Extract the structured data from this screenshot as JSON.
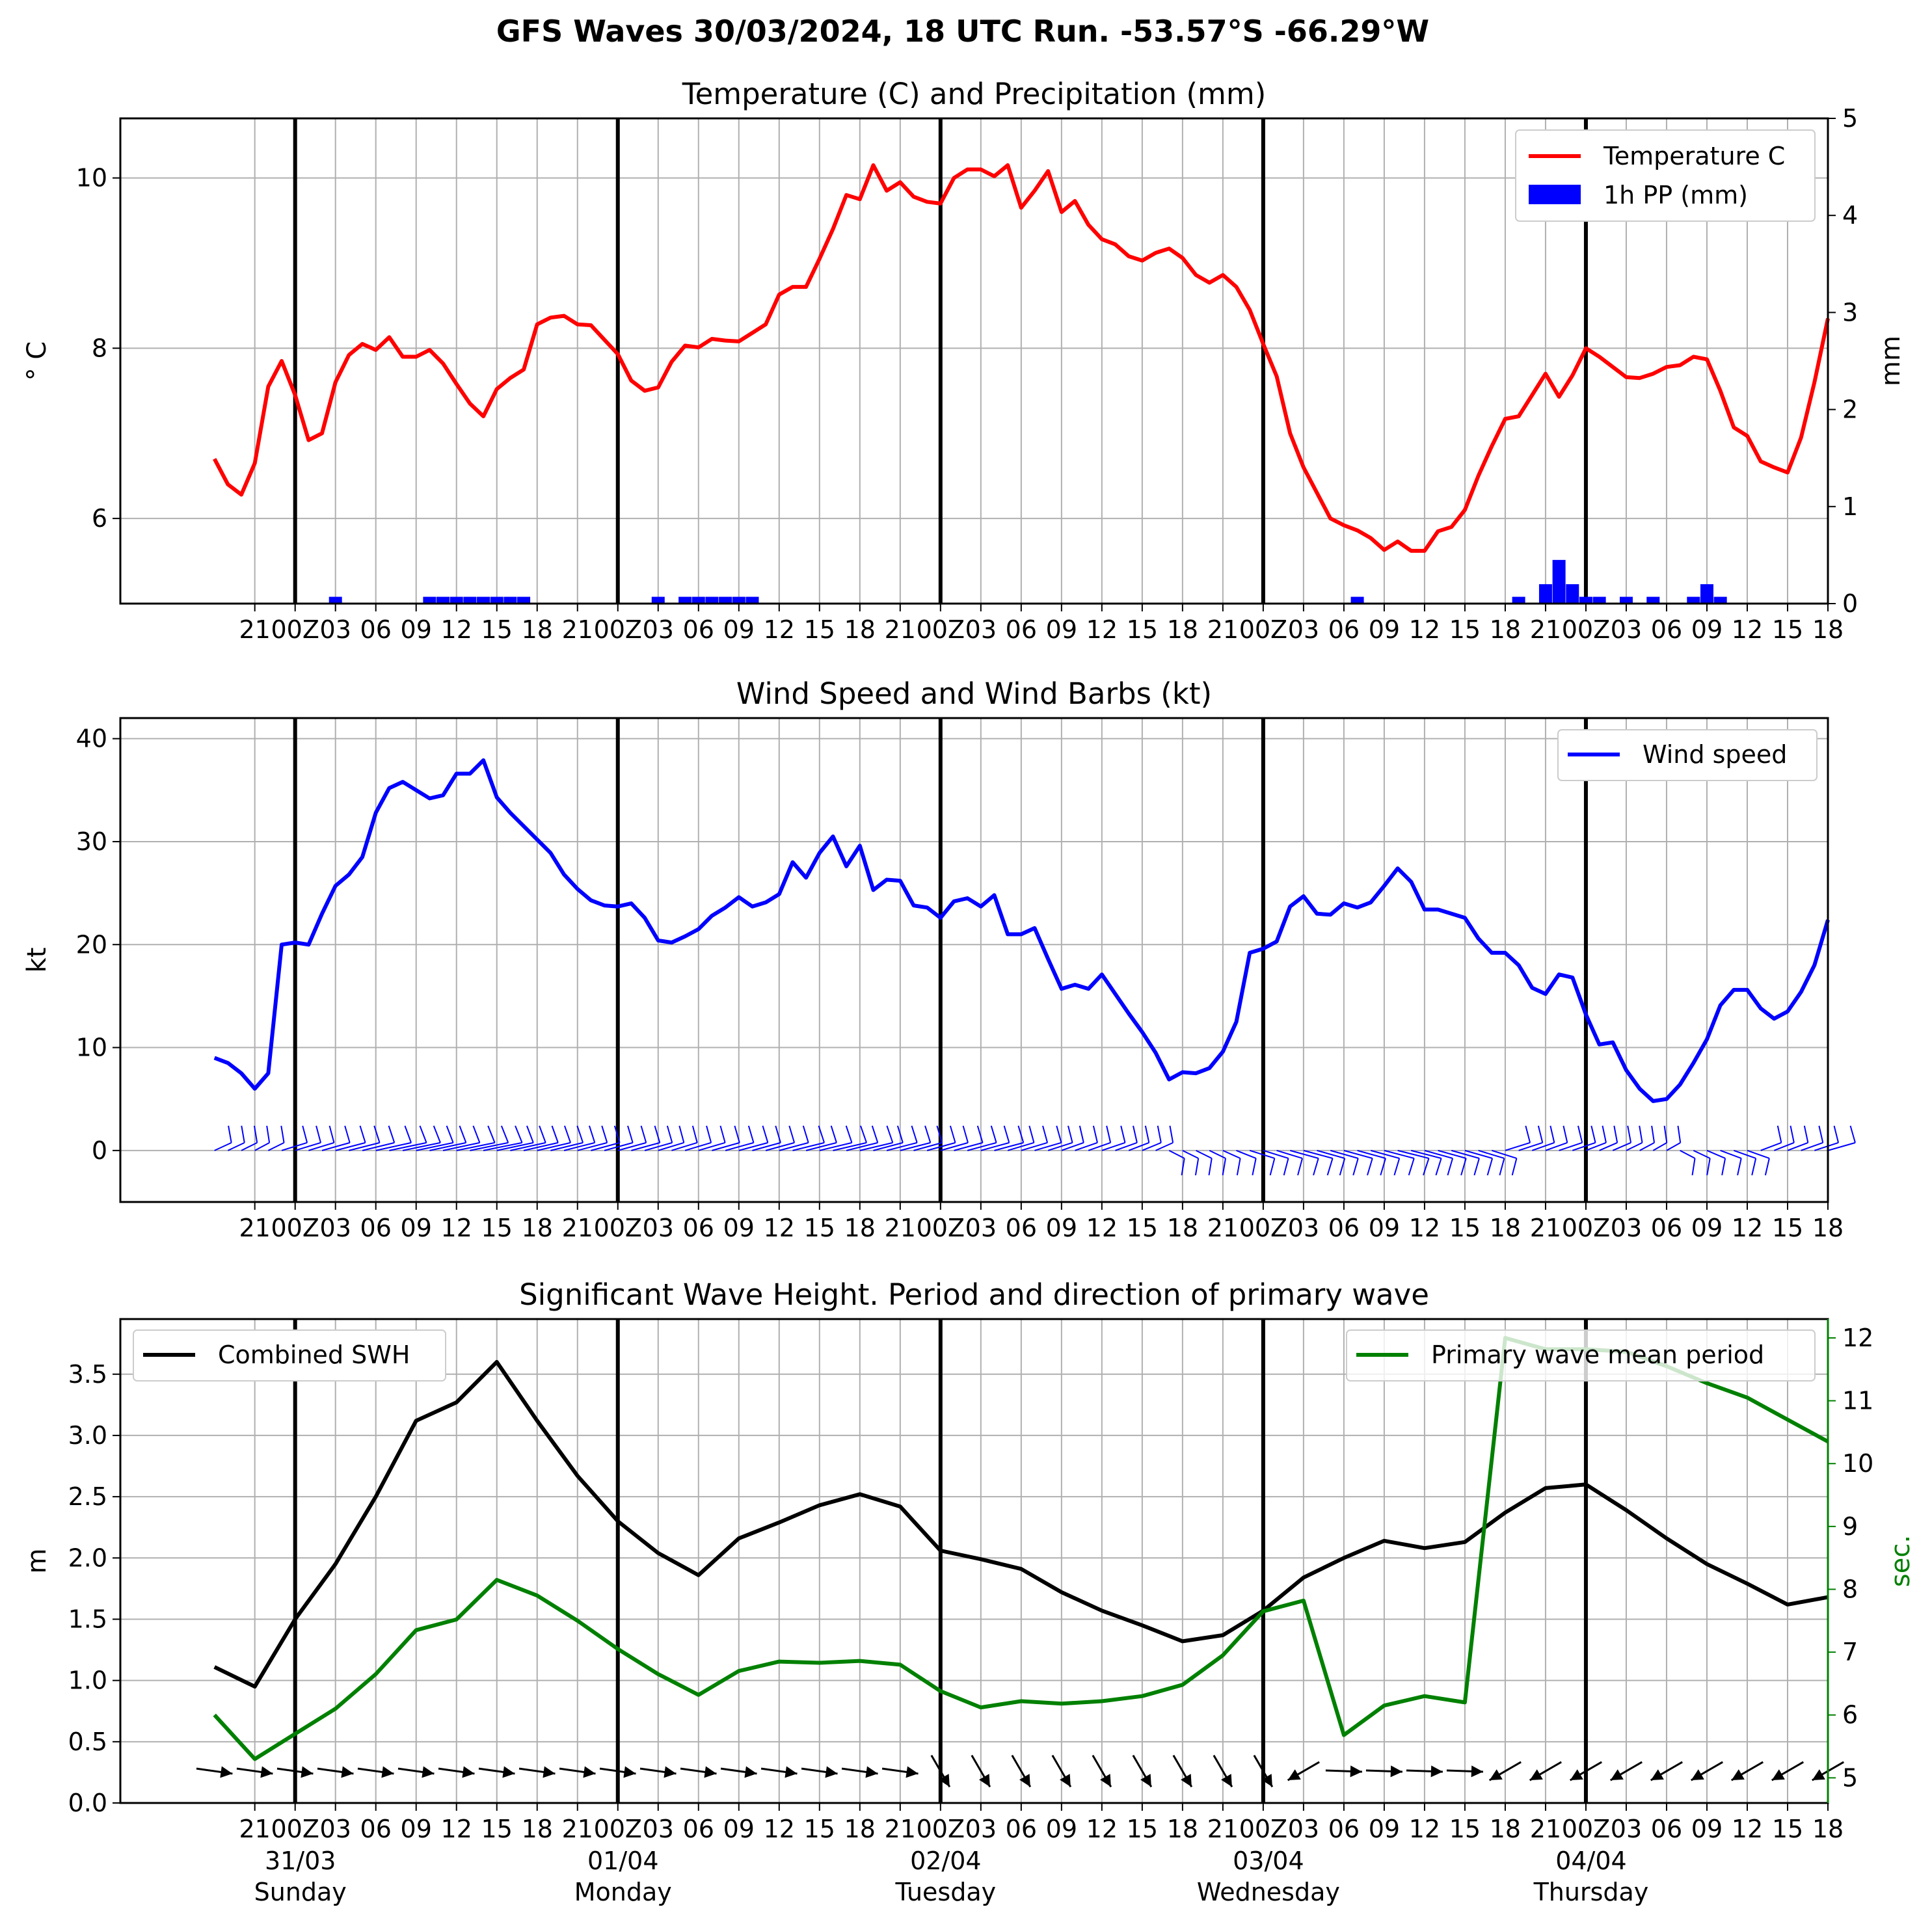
{
  "suptitle": "GFS Waves 30/03/2024, 18 UTC Run. -53.57°S -66.29°W",
  "colors": {
    "temperature": "#ff0000",
    "precip": "#0000ff",
    "wind": "#0000ff",
    "swh": "#000000",
    "period": "#008000",
    "grid": "#b0b0b0",
    "day_lines": "#000000"
  },
  "x_ticks_top": [
    "21",
    "00Z",
    "03",
    "06",
    "09",
    "12",
    "15",
    "18",
    "21",
    "00Z",
    "03",
    "06",
    "09",
    "12",
    "15",
    "18",
    "21",
    "00Z",
    "03",
    "06",
    "09",
    "12",
    "15",
    "18",
    "21",
    "00Z",
    "03",
    "06",
    "09",
    "12",
    "15",
    "18",
    "21",
    "00Z",
    "03",
    "06",
    "09",
    "12",
    "15",
    "18"
  ],
  "day_labels": [
    {
      "date": "31/03",
      "day": "Sunday"
    },
    {
      "date": "01/04",
      "day": "Monday"
    },
    {
      "date": "02/04",
      "day": "Tuesday"
    },
    {
      "date": "03/04",
      "day": "Wednesday"
    },
    {
      "date": "04/04",
      "day": "Thursday"
    }
  ],
  "chart_data": [
    {
      "type": "line",
      "title": "Temperature (C) and Precipitation (mm)",
      "x_unit": "hours since 30/03/2024 18 UTC",
      "ylabel": "° C",
      "ylabel_right": "mm",
      "ylim": [
        5.0,
        10.7
      ],
      "yticks": [
        6,
        8,
        10
      ],
      "ylim_right": [
        0,
        5
      ],
      "yticks_right": [
        0,
        1,
        2,
        3,
        4,
        5
      ],
      "grid": true,
      "legend": "top-right",
      "series": [
        {
          "name": "Temperature C",
          "color": "#ff0000",
          "x": [
            0,
            1,
            2,
            3,
            4,
            5,
            6,
            7,
            8,
            9,
            10,
            11,
            12,
            13,
            14,
            15,
            16,
            17,
            18,
            19,
            20,
            21,
            22,
            23,
            24,
            25,
            26,
            27,
            28,
            29,
            30,
            31,
            32,
            33,
            34,
            35,
            36,
            37,
            38,
            39,
            40,
            41,
            42,
            43,
            44,
            45,
            46,
            47,
            48,
            49,
            50,
            51,
            52,
            53,
            54,
            55,
            56,
            57,
            58,
            59,
            60,
            61,
            62,
            63,
            64,
            65,
            66,
            67,
            68,
            69,
            70,
            71,
            72,
            73,
            74,
            75,
            76,
            77,
            78,
            79,
            80,
            81,
            82,
            83,
            84,
            85,
            86,
            87,
            88,
            89,
            90,
            91,
            92,
            93,
            94,
            95,
            96,
            97,
            98,
            99,
            100,
            101,
            102,
            103,
            104,
            105,
            106,
            107,
            108,
            109,
            110,
            111,
            112,
            113,
            114,
            115,
            116,
            117,
            118,
            119,
            120
          ],
          "values": [
            6.7,
            6.4,
            6.28,
            6.65,
            7.55,
            7.85,
            7.45,
            6.92,
            7.0,
            7.6,
            7.92,
            8.05,
            7.98,
            8.13,
            7.9,
            7.9,
            7.98,
            7.82,
            7.58,
            7.35,
            7.2,
            7.52,
            7.65,
            7.75,
            8.28,
            8.36,
            8.38,
            8.28,
            8.27,
            8.1,
            7.93,
            7.62,
            7.5,
            7.54,
            7.84,
            8.03,
            8.01,
            8.11,
            8.09,
            8.08,
            8.18,
            8.28,
            8.63,
            8.72,
            8.72,
            9.05,
            9.4,
            9.8,
            9.75,
            10.15,
            9.85,
            9.95,
            9.78,
            9.72,
            9.7,
            10.0,
            10.1,
            10.1,
            10.02,
            10.15,
            9.65,
            9.85,
            10.08,
            9.6,
            9.73,
            9.45,
            9.28,
            9.22,
            9.08,
            9.03,
            9.12,
            9.17,
            9.06,
            8.86,
            8.77,
            8.86,
            8.72,
            8.45,
            8.05,
            7.67,
            7.0,
            6.6,
            6.3,
            6.0,
            5.92,
            5.86,
            5.77,
            5.63,
            5.73,
            5.62,
            5.62,
            5.85,
            5.9,
            6.1,
            6.5,
            6.85,
            7.17,
            7.2,
            7.45,
            7.7,
            7.43,
            7.68,
            8.0,
            7.9,
            7.78,
            7.66,
            7.65,
            7.7,
            7.78,
            7.8,
            7.9,
            7.87,
            7.5,
            7.07,
            6.97,
            6.67,
            6.6,
            6.54,
            6.95,
            7.6,
            8.35
          ]
        },
        {
          "name": "1h PP (mm)",
          "type": "bar",
          "color": "#0000ff",
          "axis": "right",
          "x": [
            9,
            16,
            17,
            18,
            19,
            20,
            21,
            22,
            23,
            33,
            35,
            36,
            37,
            38,
            39,
            40,
            85,
            97,
            99,
            100,
            101,
            102,
            103,
            105,
            107,
            110,
            111,
            112
          ],
          "values": [
            0.07,
            0.07,
            0.07,
            0.07,
            0.07,
            0.07,
            0.07,
            0.07,
            0.07,
            0.07,
            0.07,
            0.07,
            0.07,
            0.07,
            0.07,
            0.07,
            0.07,
            0.07,
            0.2,
            0.45,
            0.2,
            0.07,
            0.07,
            0.07,
            0.07,
            0.07,
            0.2,
            0.07
          ]
        }
      ]
    },
    {
      "type": "line",
      "title": "Wind Speed and Wind Barbs (kt)",
      "x_unit": "hours since 30/03/2024 18 UTC",
      "ylabel": "kt",
      "ylim": [
        -5,
        42
      ],
      "yticks": [
        0,
        10,
        20,
        30,
        40
      ],
      "grid": true,
      "legend": "top-right",
      "series": [
        {
          "name": "Wind speed",
          "color": "#0000ff",
          "x": [
            0,
            1,
            2,
            3,
            4,
            5,
            6,
            7,
            8,
            9,
            10,
            11,
            12,
            13,
            14,
            15,
            16,
            17,
            18,
            19,
            20,
            21,
            22,
            23,
            24,
            25,
            26,
            27,
            28,
            29,
            30,
            31,
            32,
            33,
            34,
            35,
            36,
            37,
            38,
            39,
            40,
            41,
            42,
            43,
            44,
            45,
            46,
            47,
            48,
            49,
            50,
            51,
            52,
            53,
            54,
            55,
            56,
            57,
            58,
            59,
            60,
            61,
            62,
            63,
            64,
            65,
            66,
            67,
            68,
            69,
            70,
            71,
            72,
            73,
            74,
            75,
            76,
            77,
            78,
            79,
            80,
            81,
            82,
            83,
            84,
            85,
            86,
            87,
            88,
            89,
            90,
            91,
            92,
            93,
            94,
            95,
            96,
            97,
            98,
            99,
            100,
            101,
            102,
            103,
            104,
            105,
            106,
            107,
            108,
            109,
            110,
            111,
            112,
            113,
            114,
            115,
            116,
            117,
            118,
            119,
            120
          ],
          "values": [
            9.0,
            8.5,
            7.5,
            6.0,
            7.5,
            20.0,
            20.2,
            20.0,
            23.0,
            25.7,
            26.8,
            28.5,
            32.8,
            35.2,
            35.8,
            35.0,
            34.2,
            34.5,
            36.6,
            36.6,
            37.9,
            34.3,
            32.8,
            31.5,
            30.2,
            28.9,
            26.8,
            25.4,
            24.3,
            23.8,
            23.7,
            24.0,
            22.6,
            20.4,
            20.2,
            20.8,
            21.5,
            22.8,
            23.6,
            24.6,
            23.7,
            24.1,
            24.9,
            28.0,
            26.5,
            28.9,
            30.5,
            27.6,
            29.6,
            25.3,
            26.3,
            26.2,
            23.8,
            23.6,
            22.6,
            24.2,
            24.5,
            23.7,
            24.8,
            21.0,
            21.0,
            21.6,
            18.6,
            15.7,
            16.1,
            15.7,
            17.1,
            15.2,
            13.3,
            11.5,
            9.5,
            6.9,
            7.6,
            7.5,
            8.0,
            9.6,
            12.5,
            19.2,
            19.6,
            20.3,
            23.7,
            24.7,
            23.0,
            22.9,
            24.0,
            23.6,
            24.1,
            25.7,
            27.4,
            26.1,
            23.4,
            23.4,
            23.0,
            22.6,
            20.6,
            19.2,
            19.2,
            18.0,
            15.8,
            15.2,
            17.1,
            16.8,
            13.2,
            10.3,
            10.5,
            7.8,
            6.0,
            4.8,
            5.0,
            6.4,
            8.5,
            10.8,
            14.1,
            15.6,
            15.6,
            13.8,
            12.8,
            13.5,
            15.4,
            18.0,
            22.4
          ]
        }
      ]
    },
    {
      "type": "line",
      "title": "Significant Wave Height. Period and direction of primary wave",
      "x_unit": "hours since 30/03/2024 18 UTC",
      "ylabel": "m",
      "ylabel_right": "sec.",
      "ylim": [
        0,
        3.95
      ],
      "yticks": [
        0.0,
        0.5,
        1.0,
        1.5,
        2.0,
        2.5,
        3.0,
        3.5
      ],
      "ylim_right": [
        4.6,
        12.3
      ],
      "yticks_right": [
        5,
        6,
        7,
        8,
        9,
        10,
        11,
        12
      ],
      "grid": true,
      "series": [
        {
          "name": "Combined SWH",
          "color": "#000000",
          "x": [
            0,
            3,
            6,
            9,
            12,
            15,
            18,
            21,
            24,
            27,
            30,
            33,
            36,
            39,
            42,
            45,
            48,
            51,
            54,
            57,
            60,
            63,
            66,
            69,
            72,
            75,
            78,
            81,
            84,
            87,
            90,
            93,
            96,
            99,
            102,
            105,
            108,
            111,
            114,
            117,
            120
          ],
          "values": [
            1.11,
            0.95,
            1.5,
            1.95,
            2.5,
            3.12,
            3.27,
            3.6,
            3.12,
            2.67,
            2.3,
            2.04,
            1.86,
            2.16,
            2.29,
            2.43,
            2.52,
            2.42,
            2.06,
            1.99,
            1.91,
            1.72,
            1.57,
            1.45,
            1.32,
            1.37,
            1.57,
            1.84,
            2.0,
            2.14,
            2.08,
            2.13,
            2.37,
            2.57,
            2.6,
            2.39,
            2.16,
            1.95,
            1.79,
            1.62,
            1.68
          ]
        },
        {
          "name": "Primary wave mean period",
          "color": "#008000",
          "axis": "right",
          "x": [
            0,
            3,
            6,
            9,
            12,
            15,
            18,
            21,
            24,
            27,
            30,
            33,
            36,
            39,
            42,
            45,
            48,
            51,
            54,
            57,
            60,
            63,
            66,
            69,
            72,
            75,
            78,
            81,
            84,
            87,
            90,
            93,
            96,
            99,
            102,
            105,
            108,
            111,
            114,
            117,
            120
          ],
          "values": [
            6.0,
            5.3,
            5.7,
            6.1,
            6.65,
            7.35,
            7.52,
            8.15,
            7.9,
            7.5,
            7.05,
            6.65,
            6.32,
            6.7,
            6.85,
            6.83,
            6.86,
            6.8,
            6.38,
            6.12,
            6.22,
            6.18,
            6.22,
            6.3,
            6.48,
            6.95,
            7.65,
            7.82,
            5.68,
            6.15,
            6.3,
            6.2,
            12.0,
            11.82,
            11.82,
            11.78,
            11.55,
            11.28,
            11.05,
            10.7,
            10.35
          ]
        }
      ]
    }
  ]
}
